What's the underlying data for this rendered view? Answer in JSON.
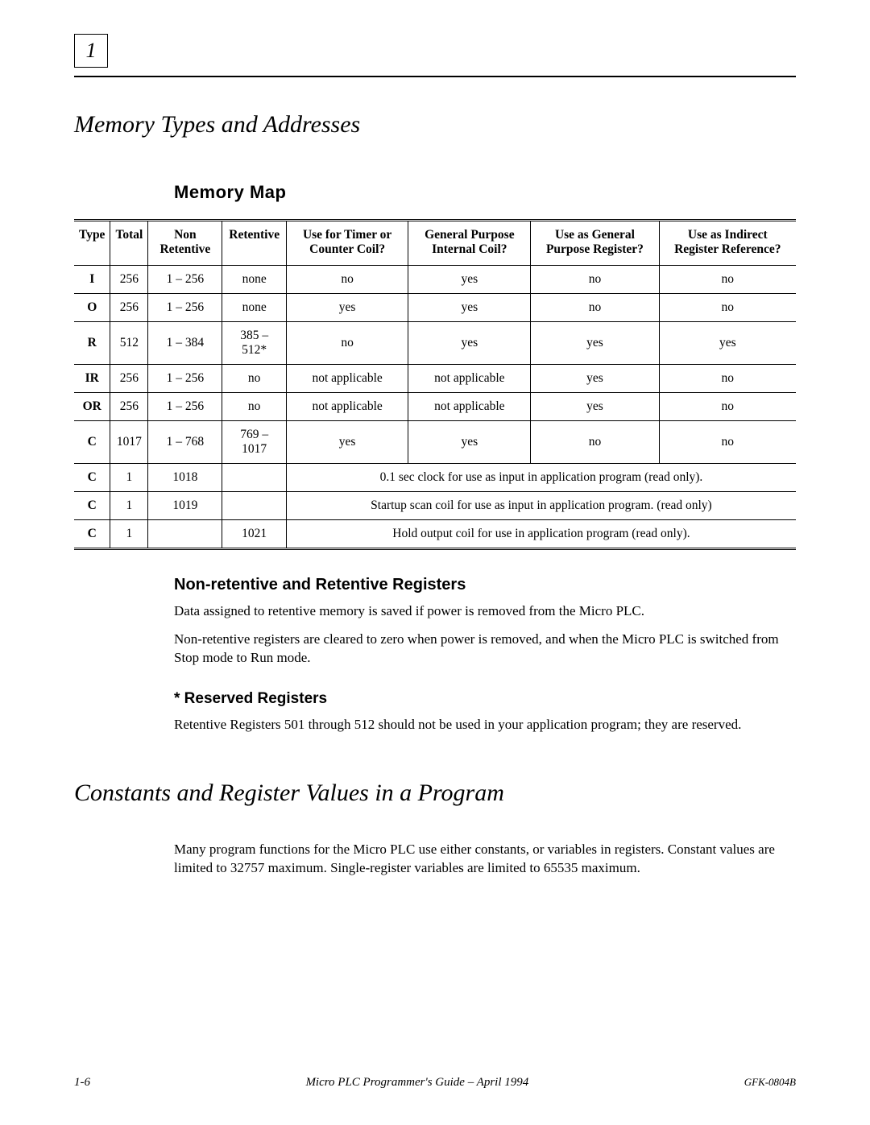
{
  "chapter_number": "1",
  "section_title": "Memory Types and Addresses",
  "map_heading": "Memory Map",
  "table": {
    "headers": {
      "type": "Type",
      "total": "Total",
      "non_retentive": "Non Retentive",
      "retentive": "Retentive",
      "timer_coil": "Use for Timer or Counter Coil?",
      "gp_coil": "General Purpose Internal Coil?",
      "gp_register": "Use as General Purpose Register?",
      "indirect_ref": "Use as Indirect Register Reference?"
    },
    "rows": [
      {
        "type": "I",
        "total": "256",
        "nonret": "1 – 256",
        "ret": "none",
        "timer": "no",
        "gpcoil": "yes",
        "gpreg": "no",
        "indref": "no"
      },
      {
        "type": "O",
        "total": "256",
        "nonret": "1 – 256",
        "ret": "none",
        "timer": "yes",
        "gpcoil": "yes",
        "gpreg": "no",
        "indref": "no"
      },
      {
        "type": "R",
        "total": "512",
        "nonret": "1 – 384",
        "ret": "385 – 512*",
        "timer": "no",
        "gpcoil": "yes",
        "gpreg": "yes",
        "indref": "yes"
      },
      {
        "type": "IR",
        "total": "256",
        "nonret": "1 – 256",
        "ret": "no",
        "timer": "not applicable",
        "gpcoil": "not applicable",
        "gpreg": "yes",
        "indref": "no"
      },
      {
        "type": "OR",
        "total": "256",
        "nonret": "1 – 256",
        "ret": "no",
        "timer": "not applicable",
        "gpcoil": "not applicable",
        "gpreg": "yes",
        "indref": "no"
      },
      {
        "type": "C",
        "total": "1017",
        "nonret": "1 – 768",
        "ret": "769 – 1017",
        "timer": "yes",
        "gpcoil": "yes",
        "gpreg": "no",
        "indref": "no"
      }
    ],
    "note_rows": [
      {
        "type": "C",
        "total": "1",
        "nonret": "1018",
        "ret": "",
        "note": "0.1 sec clock for use as input in application program  (read only)."
      },
      {
        "type": "C",
        "total": "1",
        "nonret": "1019",
        "ret": "",
        "note": "Startup scan coil for use as input in application program. (read only)"
      },
      {
        "type": "C",
        "total": "1",
        "nonret": "",
        "ret": "1021",
        "note": "Hold output coil for use in application program (read only)."
      }
    ]
  },
  "subsection1_title": "Non-retentive and Retentive Registers",
  "subsection1_p1": "Data assigned to retentive memory is saved if power is removed from the Micro PLC.",
  "subsection1_p2": "Non-retentive registers are cleared to zero when power is removed, and when the Micro PLC is switched from Stop mode to Run mode.",
  "subsection2_title": "*  Reserved Registers",
  "subsection2_p1": "Retentive Registers 501 through 512 should not be used in your application program; they are reserved.",
  "section2_title": "Constants and Register Values in a Program",
  "section2_p1": "Many program functions for the Micro PLC use either constants, or variables in registers. Constant values are limited to 32757 maximum. Single-register variables are limited to 65535 maximum.",
  "footer": {
    "page": "1-6",
    "title": "Micro PLC Programmer's Guide – April 1994",
    "doc": "GFK-0804B"
  }
}
